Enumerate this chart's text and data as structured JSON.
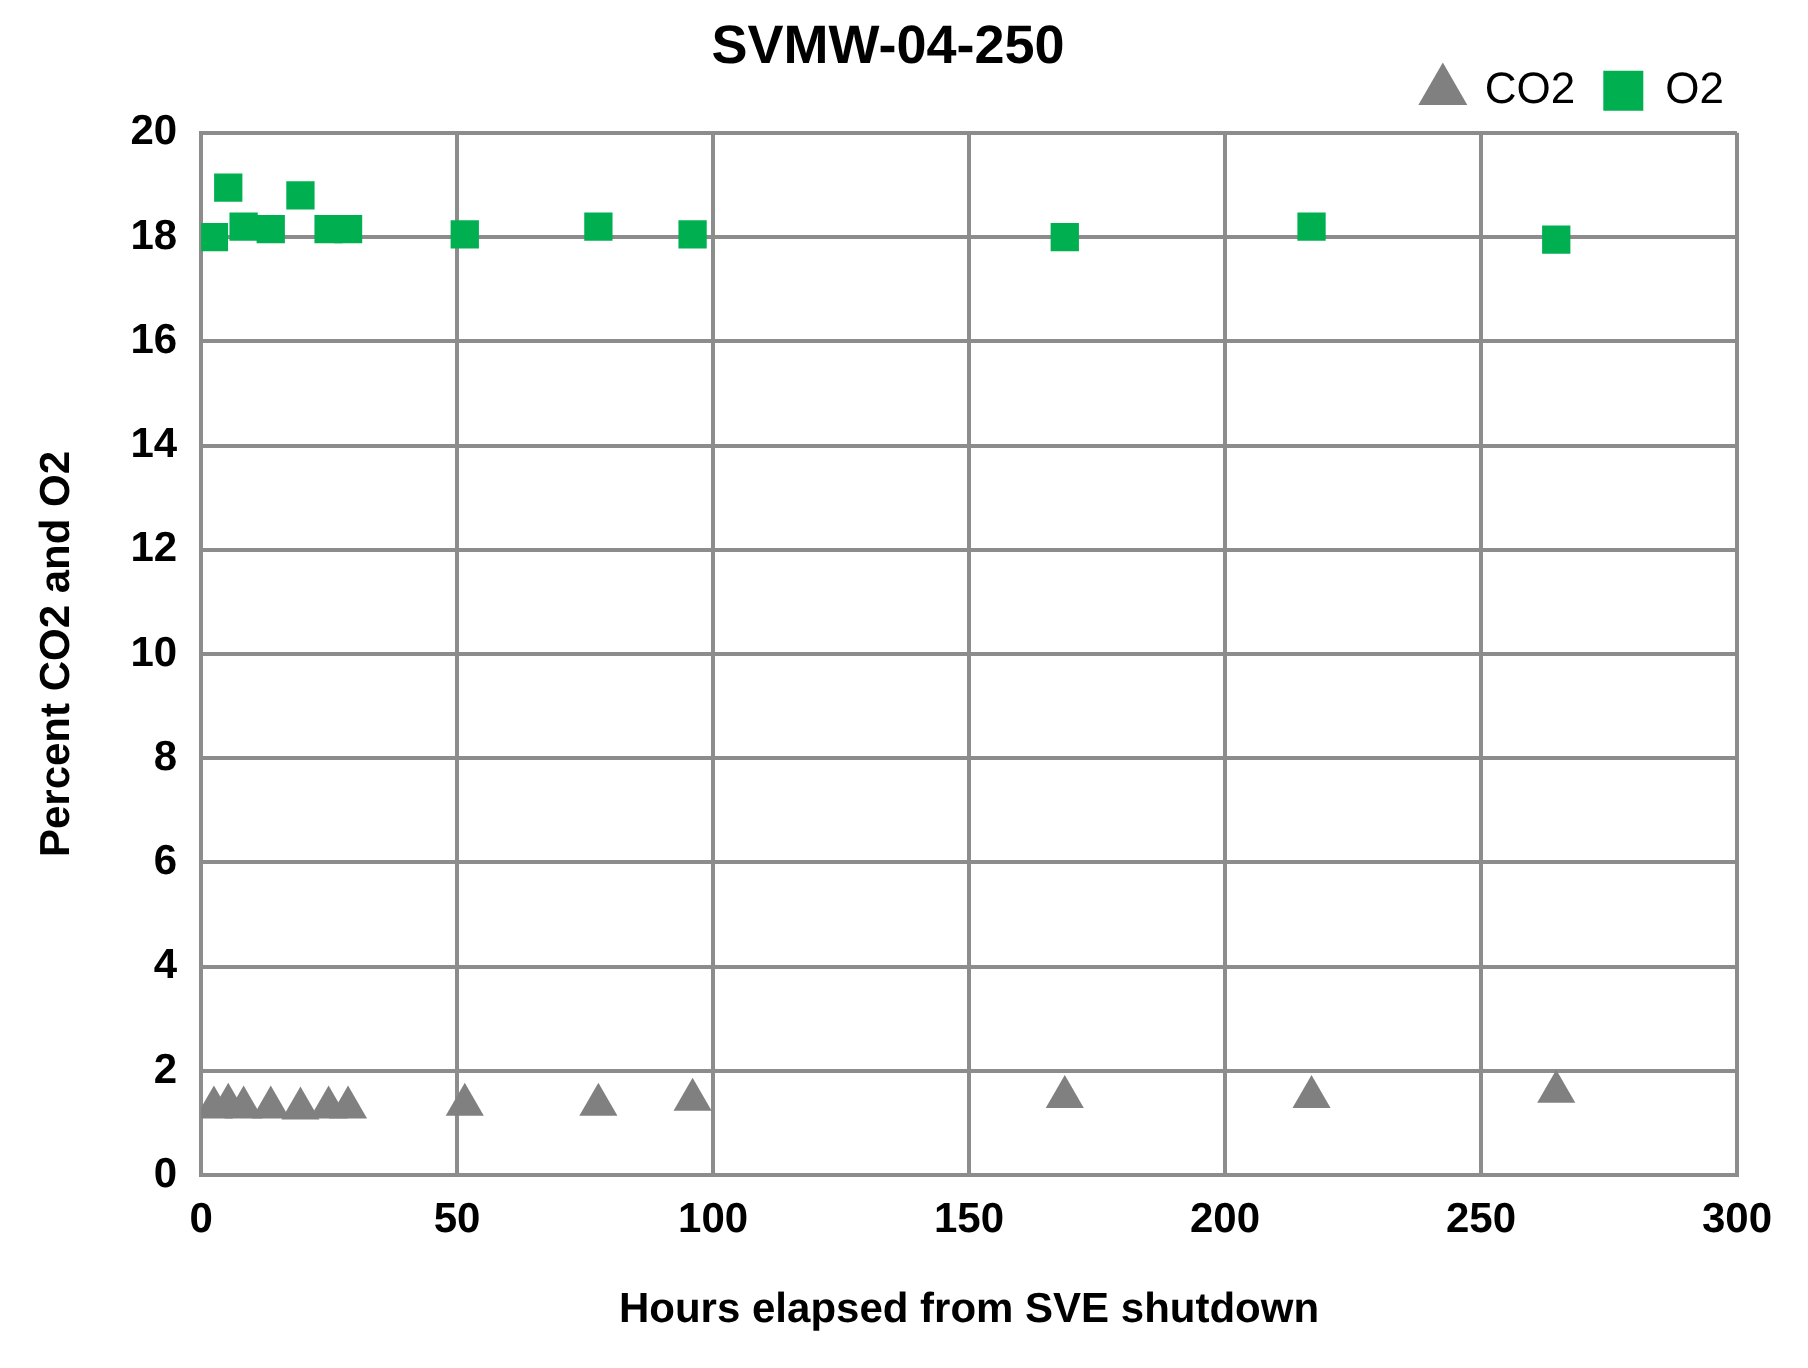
{
  "chart_data": {
    "type": "scatter",
    "title": "SVMW-04-250",
    "xlabel": "Hours elapsed from SVE shutdown",
    "ylabel": "Percent CO2 and O2",
    "x": [
      2.5,
      5.3,
      8.3,
      13.6,
      19.4,
      24.9,
      28.7,
      51.5,
      77.6,
      96,
      168.7,
      216.9,
      264.7
    ],
    "series": [
      {
        "name": "CO2",
        "color": "#808080",
        "marker": "triangle",
        "values": [
          1.3,
          1.35,
          1.3,
          1.3,
          1.28,
          1.3,
          1.3,
          1.35,
          1.35,
          1.45,
          1.5,
          1.5,
          1.6
        ]
      },
      {
        "name": "O2",
        "color": "#00b050",
        "marker": "square",
        "values": [
          18.0,
          18.95,
          18.2,
          18.15,
          18.8,
          18.15,
          18.15,
          18.05,
          18.2,
          18.05,
          18.0,
          18.2,
          17.95
        ]
      }
    ],
    "xlim": [
      0,
      300
    ],
    "xticks": [
      0,
      50,
      100,
      150,
      200,
      250,
      300
    ],
    "ylim": [
      0,
      20
    ],
    "yticks": [
      0,
      2,
      4,
      6,
      8,
      10,
      12,
      14,
      16,
      18,
      20
    ],
    "grid": true,
    "legend": "top right"
  }
}
